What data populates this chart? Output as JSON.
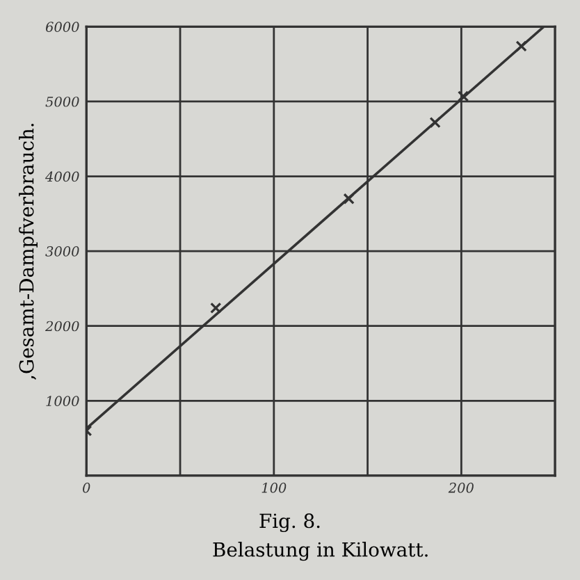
{
  "chart_data": {
    "type": "scatter",
    "xlabel": "Belastung in Kilowatt.",
    "ylabel": ",Gesamt-Dampfverbrauch.",
    "annotations": [
      "Fig. 8."
    ],
    "x": [
      0,
      69,
      140,
      186,
      201,
      232
    ],
    "series": [
      {
        "color": "#333333",
        "marker": "cross",
        "values": [
          600,
          2240,
          3700,
          4720,
          5070,
          5740
        ]
      },
      {
        "type": "line",
        "color": "#333333",
        "x": [
          0,
          244
        ],
        "values": [
          630,
          6000
        ]
      }
    ],
    "xlim": [
      0,
      250
    ],
    "ylim": [
      0,
      6000
    ],
    "xticks": [
      0,
      {
        "value": 50,
        "label": null
      },
      100,
      {
        "value": 150,
        "label": null
      },
      200,
      {
        "value": 250,
        "label": null
      }
    ],
    "yticks": [
      {
        "value": 0,
        "label": null
      },
      1000,
      2000,
      3000,
      4000,
      5000,
      6000
    ],
    "grid": true
  }
}
